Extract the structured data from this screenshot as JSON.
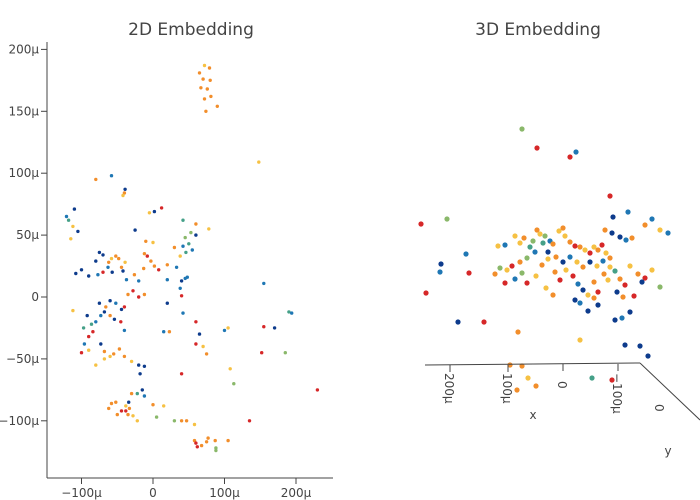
{
  "colors": {
    "blue": "#1f77b4",
    "navy": "#0d3b8c",
    "orange": "#f28e2b",
    "gold": "#f6c143",
    "red": "#d62728",
    "green": "#8ab86a",
    "teal": "#45a088"
  },
  "chart_data": [
    {
      "type": "scatter",
      "title": "2D Embedding",
      "xlabel": "",
      "ylabel": "",
      "xlim": [
        -145,
        250
      ],
      "ylim": [
        -145,
        205
      ],
      "xticks": [
        {
          "v": -100,
          "label": "−100μ"
        },
        {
          "v": 0,
          "label": "0"
        },
        {
          "v": 100,
          "label": "100μ"
        },
        {
          "v": 200,
          "label": "200μ"
        }
      ],
      "yticks": [
        {
          "v": -100,
          "label": "−100μ"
        },
        {
          "v": -50,
          "label": "−50μ"
        },
        {
          "v": 0,
          "label": "0"
        },
        {
          "v": 50,
          "label": "50μ"
        },
        {
          "v": 100,
          "label": "100μ"
        },
        {
          "v": 150,
          "label": "150μ"
        },
        {
          "v": 200,
          "label": "200μ"
        }
      ],
      "grid": false,
      "points": [
        [
          65,
          181,
          "orange"
        ],
        [
          72,
          187,
          "gold"
        ],
        [
          79,
          185,
          "orange"
        ],
        [
          70,
          176,
          "orange"
        ],
        [
          80,
          175,
          "orange"
        ],
        [
          67,
          169,
          "orange"
        ],
        [
          76,
          168,
          "orange"
        ],
        [
          72,
          160,
          "orange"
        ],
        [
          81,
          162,
          "orange"
        ],
        [
          74,
          150,
          "orange"
        ],
        [
          90,
          154,
          "orange"
        ],
        [
          148,
          109,
          "gold"
        ],
        [
          -80,
          95,
          "orange"
        ],
        [
          -58,
          98,
          "blue"
        ],
        [
          -39,
          87,
          "navy"
        ],
        [
          -40,
          84,
          "orange"
        ],
        [
          -42,
          82,
          "gold"
        ],
        [
          -110,
          71,
          "navy"
        ],
        [
          -121,
          65,
          "blue"
        ],
        [
          -118,
          62,
          "teal"
        ],
        [
          -112,
          57,
          "gold"
        ],
        [
          -105,
          53,
          "navy"
        ],
        [
          -115,
          47,
          "gold"
        ],
        [
          -5,
          68,
          "gold"
        ],
        [
          2,
          69,
          "navy"
        ],
        [
          12,
          72,
          "red"
        ],
        [
          42,
          62,
          "teal"
        ],
        [
          60,
          59,
          "orange"
        ],
        [
          78,
          55,
          "gold"
        ],
        [
          -25,
          54,
          "navy"
        ],
        [
          -10,
          45,
          "orange"
        ],
        [
          0,
          44,
          "gold"
        ],
        [
          45,
          48,
          "green"
        ],
        [
          53,
          52,
          "green"
        ],
        [
          60,
          50,
          "navy"
        ],
        [
          -80,
          29,
          "navy"
        ],
        [
          -75,
          36,
          "navy"
        ],
        [
          -70,
          34,
          "navy"
        ],
        [
          -62,
          28,
          "orange"
        ],
        [
          -58,
          31,
          "gold"
        ],
        [
          -52,
          33,
          "orange"
        ],
        [
          -48,
          31,
          "orange"
        ],
        [
          -44,
          24,
          "orange"
        ],
        [
          -39,
          28,
          "gold"
        ],
        [
          -63,
          24,
          "blue"
        ],
        [
          -57,
          20,
          "navy"
        ],
        [
          -70,
          20,
          "red"
        ],
        [
          -77,
          18,
          "blue"
        ],
        [
          -90,
          17,
          "navy"
        ],
        [
          -100,
          22,
          "navy"
        ],
        [
          -108,
          19,
          "navy"
        ],
        [
          -12,
          35,
          "orange"
        ],
        [
          -8,
          33,
          "red"
        ],
        [
          -3,
          29,
          "orange"
        ],
        [
          2,
          25,
          "orange"
        ],
        [
          8,
          22,
          "red"
        ],
        [
          20,
          26,
          "orange"
        ],
        [
          30,
          40,
          "orange"
        ],
        [
          38,
          33,
          "gold"
        ],
        [
          42,
          41,
          "blue"
        ],
        [
          46,
          36,
          "teal"
        ],
        [
          50,
          43,
          "teal"
        ],
        [
          55,
          38,
          "blue"
        ],
        [
          33,
          24,
          "blue"
        ],
        [
          48,
          16,
          "blue"
        ],
        [
          40,
          13,
          "navy"
        ],
        [
          20,
          14,
          "blue"
        ],
        [
          -13,
          23,
          "orange"
        ],
        [
          -26,
          18,
          "orange"
        ],
        [
          -20,
          13,
          "blue"
        ],
        [
          -42,
          21,
          "navy"
        ],
        [
          -37,
          14,
          "blue"
        ],
        [
          -75,
          -5,
          "navy"
        ],
        [
          -66,
          -8,
          "orange"
        ],
        [
          -60,
          -3,
          "navy"
        ],
        [
          -52,
          -5,
          "blue"
        ],
        [
          -44,
          -10,
          "navy"
        ],
        [
          -40,
          -8,
          "red"
        ],
        [
          -35,
          2,
          "orange"
        ],
        [
          -20,
          0,
          "red"
        ],
        [
          -12,
          2,
          "orange"
        ],
        [
          -28,
          5,
          "red"
        ],
        [
          -112,
          -11,
          "gold"
        ],
        [
          -92,
          -15,
          "navy"
        ],
        [
          -86,
          -22,
          "teal"
        ],
        [
          -80,
          -20,
          "blue"
        ],
        [
          -73,
          -15,
          "blue"
        ],
        [
          -68,
          -12,
          "navy"
        ],
        [
          -60,
          -15,
          "orange"
        ],
        [
          -54,
          -18,
          "navy"
        ],
        [
          -45,
          -20,
          "red"
        ],
        [
          -40,
          -27,
          "blue"
        ],
        [
          -97,
          -25,
          "teal"
        ],
        [
          -90,
          -32,
          "red"
        ],
        [
          -84,
          -28,
          "red"
        ],
        [
          -96,
          -38,
          "blue"
        ],
        [
          -100,
          -45,
          "red"
        ],
        [
          -90,
          -43,
          "gold"
        ],
        [
          -73,
          -38,
          "navy"
        ],
        [
          -68,
          -44,
          "orange"
        ],
        [
          -60,
          -48,
          "gold"
        ],
        [
          -47,
          -42,
          "orange"
        ],
        [
          -40,
          -48,
          "orange"
        ],
        [
          -30,
          -52,
          "gold"
        ],
        [
          -80,
          -55,
          "gold"
        ],
        [
          -68,
          -50,
          "gold"
        ],
        [
          -55,
          -46,
          "orange"
        ],
        [
          -20,
          -55,
          "navy"
        ],
        [
          -12,
          -56,
          "navy"
        ],
        [
          -18,
          -62,
          "navy"
        ],
        [
          -15,
          -75,
          "navy"
        ],
        [
          -12,
          -80,
          "blue"
        ],
        [
          -22,
          -78,
          "teal"
        ],
        [
          -30,
          -78,
          "orange"
        ],
        [
          -34,
          -85,
          "navy"
        ],
        [
          -38,
          -88,
          "gold"
        ],
        [
          -44,
          -92,
          "red"
        ],
        [
          -52,
          -85,
          "orange"
        ],
        [
          -58,
          -86,
          "orange"
        ],
        [
          -62,
          -90,
          "orange"
        ],
        [
          -50,
          -95,
          "orange"
        ],
        [
          -38,
          -92,
          "red"
        ],
        [
          -35,
          -95,
          "orange"
        ],
        [
          -28,
          -96,
          "gold"
        ],
        [
          -22,
          -100,
          "gold"
        ],
        [
          -33,
          -90,
          "orange"
        ],
        [
          0,
          -87,
          "orange"
        ],
        [
          15,
          -88,
          "gold"
        ],
        [
          40,
          -62,
          "red"
        ],
        [
          23,
          -28,
          "orange"
        ],
        [
          15,
          -28,
          "blue"
        ],
        [
          42,
          -13,
          "blue"
        ],
        [
          40,
          1,
          "red"
        ],
        [
          45,
          15,
          "blue"
        ],
        [
          38,
          7,
          "blue"
        ],
        [
          20,
          -5,
          "navy"
        ],
        [
          60,
          -20,
          "red"
        ],
        [
          65,
          -30,
          "navy"
        ],
        [
          75,
          -46,
          "orange"
        ],
        [
          70,
          -40,
          "gold"
        ],
        [
          60,
          -38,
          "red"
        ],
        [
          105,
          -25,
          "gold"
        ],
        [
          100,
          -27,
          "blue"
        ],
        [
          108,
          -58,
          "gold"
        ],
        [
          113,
          -70,
          "green"
        ],
        [
          155,
          -24,
          "red"
        ],
        [
          152,
          -45,
          "red"
        ],
        [
          170,
          -25,
          "navy"
        ],
        [
          185,
          -45,
          "green"
        ],
        [
          190,
          -12,
          "teal"
        ],
        [
          194,
          -13,
          "blue"
        ],
        [
          155,
          11,
          "blue"
        ],
        [
          230,
          -75,
          "red"
        ],
        [
          5,
          -97,
          "green"
        ],
        [
          30,
          -100,
          "green"
        ],
        [
          40,
          -100,
          "orange"
        ],
        [
          47,
          -100,
          "orange"
        ],
        [
          58,
          -103,
          "gold"
        ],
        [
          58,
          -116,
          "orange"
        ],
        [
          60,
          -118,
          "red"
        ],
        [
          62,
          -121,
          "red"
        ],
        [
          68,
          -120,
          "orange"
        ],
        [
          75,
          -117,
          "orange"
        ],
        [
          77,
          -114,
          "orange"
        ],
        [
          87,
          -116,
          "orange"
        ],
        [
          88,
          -122,
          "green"
        ],
        [
          88,
          -124,
          "green"
        ],
        [
          105,
          -116,
          "orange"
        ],
        [
          135,
          -100,
          "red"
        ]
      ]
    },
    {
      "type": "scatter",
      "title": "3D Embedding",
      "axes": [
        {
          "name": "x",
          "label": "x",
          "ticks": [
            "200μ",
            "100μ",
            "0",
            "−100μ"
          ]
        },
        {
          "name": "y",
          "label": "y",
          "ticks": [
            "0"
          ]
        }
      ]
    }
  ]
}
